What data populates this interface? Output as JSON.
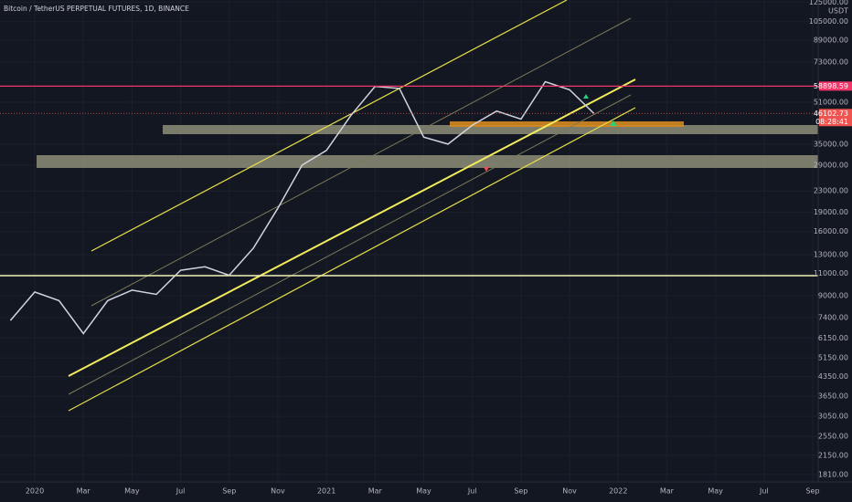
{
  "chart_data": {
    "type": "line",
    "title": "Bitcoin / TetherUS PERPETUAL FUTURES, 1D, BINANCE",
    "currency": "USDT",
    "x": [
      "2019-12",
      "2020-01",
      "2020-02",
      "2020-03",
      "2020-04",
      "2020-05",
      "2020-06",
      "2020-07",
      "2020-08",
      "2020-09",
      "2020-10",
      "2020-11",
      "2020-12",
      "2021-01",
      "2021-02",
      "2021-03",
      "2021-04",
      "2021-05",
      "2021-06",
      "2021-07",
      "2021-08",
      "2021-09",
      "2021-10",
      "2021-11",
      "2021-12"
    ],
    "series": [
      {
        "name": "BTCUSDT",
        "color": "#d1d4dc",
        "values": [
          7200,
          9300,
          8600,
          6400,
          8600,
          9450,
          9100,
          11300,
          11650,
          10800,
          13800,
          19700,
          29000,
          33100,
          45200,
          58800,
          57700,
          37300,
          35000,
          41500,
          47100,
          43800,
          61300,
          57000,
          46102.73
        ]
      }
    ],
    "xlim": [
      "2019-12",
      "2022-09"
    ],
    "xticks": [
      {
        "value": "2020-01",
        "label": "2020"
      },
      {
        "value": "2020-03",
        "label": "Mar"
      },
      {
        "value": "2020-05",
        "label": "May"
      },
      {
        "value": "2020-07",
        "label": "Jul"
      },
      {
        "value": "2020-09",
        "label": "Sep"
      },
      {
        "value": "2020-11",
        "label": "Nov"
      },
      {
        "value": "2021-01",
        "label": "2021"
      },
      {
        "value": "2021-03",
        "label": "Mar"
      },
      {
        "value": "2021-05",
        "label": "May"
      },
      {
        "value": "2021-07",
        "label": "Jul"
      },
      {
        "value": "2021-09",
        "label": "Sep"
      },
      {
        "value": "2021-11",
        "label": "Nov"
      },
      {
        "value": "2022-01",
        "label": "2022"
      },
      {
        "value": "2022-03",
        "label": "Mar"
      },
      {
        "value": "2022-05",
        "label": "May"
      },
      {
        "value": "2022-07",
        "label": "Jul"
      },
      {
        "value": "2022-09",
        "label": "Sep"
      }
    ],
    "ylim": [
      1707,
      127500
    ],
    "log_scale": true,
    "grid": true,
    "yticks": [
      {
        "value": 125000,
        "label": "125000.00"
      },
      {
        "value": 105000,
        "label": "105000.00"
      },
      {
        "value": 89000,
        "label": "89000.00"
      },
      {
        "value": 73000,
        "label": "73000.00"
      },
      {
        "value": 51000,
        "label": "51000.00"
      },
      {
        "value": 35000,
        "label": "35000.00"
      },
      {
        "value": 29000,
        "label": "29000.00"
      },
      {
        "value": 23000,
        "label": "23000.00"
      },
      {
        "value": 19000,
        "label": "19000.00"
      },
      {
        "value": 16000,
        "label": "16000.00"
      },
      {
        "value": 13000,
        "label": "13000.00"
      },
      {
        "value": 11000,
        "label": "11000.00"
      },
      {
        "value": 9000,
        "label": "9000.00"
      },
      {
        "value": 7400,
        "label": "7400.00"
      },
      {
        "value": 6150,
        "label": "6150.00"
      },
      {
        "value": 5150,
        "label": "5150.00"
      },
      {
        "value": 4350,
        "label": "4350.00"
      },
      {
        "value": 3650,
        "label": "3650.00"
      },
      {
        "value": 3050,
        "label": "3050.00"
      },
      {
        "value": 2550,
        "label": "2550.00"
      },
      {
        "value": 2150,
        "label": "2150.00"
      },
      {
        "value": 1810,
        "label": "1810.00"
      }
    ],
    "price_labels": [
      {
        "value": 58898.59,
        "label": "58898.59",
        "color": "#f23669"
      },
      {
        "value": 46102.73,
        "label": "46102.73",
        "color": "#ef5350"
      }
    ],
    "countdown": "08:28:41"
  }
}
